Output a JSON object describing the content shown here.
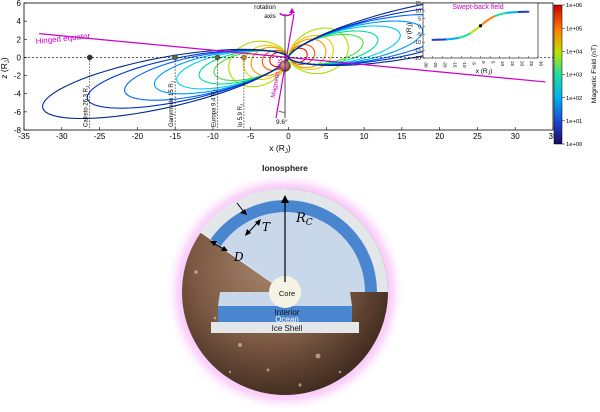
{
  "main_chart": {
    "xlabel": "x (R",
    "xlabel_sub": "J",
    "xlabel_tail": ")",
    "ylabel": "z (R",
    "ylabel_sub": "J",
    "ylabel_tail": ")",
    "xlim": [
      -35,
      35
    ],
    "ylim": [
      -8,
      6
    ],
    "xticks": [
      -35,
      -30,
      -25,
      -20,
      -15,
      -10,
      -5,
      0,
      5,
      10,
      15,
      20,
      25,
      30,
      35
    ],
    "yticks": [
      6,
      4,
      2,
      0,
      -2,
      -4,
      -6,
      -8
    ],
    "annotations": {
      "hinged_equator": "Hinged equator",
      "rotation_axis_1": "rotation",
      "rotation_axis_2": "axis",
      "magnetic_axis": "Magnetic axis",
      "tilt_angle": "9.6°"
    },
    "moons": [
      {
        "label": "Callisto 26.3 R",
        "sub": "J",
        "x": -26.3,
        "color": "#333333"
      },
      {
        "label": "Ganymede 15 R",
        "sub": "J",
        "x": -15,
        "color": "#4d6b4d"
      },
      {
        "label": "Europa 9.4 R",
        "sub": "J",
        "x": -9.4,
        "color": "#556b2f"
      },
      {
        "label": "Io 5.9 R",
        "sub": "J",
        "x": -5.9,
        "color": "#b8862e"
      }
    ]
  },
  "inset_chart": {
    "title": "Swept-back field",
    "xlabel": "x (R",
    "xlabel_sub": "J",
    "xlabel_tail": ")",
    "ylabel": "y (R",
    "ylabel_sub": "J",
    "ylabel_tail": ")",
    "xlim": [
      -30,
      30
    ],
    "ylim": [
      -20,
      15
    ],
    "xticks": [
      -30,
      -25,
      -20,
      -15,
      -10,
      -5,
      0,
      5,
      10,
      15,
      20,
      25,
      30
    ],
    "yticks": [
      15,
      10,
      5,
      0,
      -5,
      -10,
      -15,
      -20
    ]
  },
  "colorbar": {
    "label": "Magnetic Field (nT)",
    "ticks": [
      "1e+06",
      "1e+05",
      "1e+04",
      "1e+03",
      "1e+02",
      "1e+01",
      "1e+00"
    ]
  },
  "diagram": {
    "ionosphere": "Ionosphere",
    "core": "Core",
    "interior_ocean_1": "Interior",
    "interior_ocean_2": "Ocean",
    "ice_shell": "Ice Shell",
    "rc_main": "R",
    "rc_sub": "C",
    "t_label": "T",
    "d_label": "D"
  },
  "colors": {
    "field_lines": [
      "#002a8a",
      "#0033cc",
      "#0066ff",
      "#0099ff",
      "#00ccee",
      "#00dd99",
      "#44dd44",
      "#aadd00",
      "#eecc00",
      "#ff9900",
      "#ff5500",
      "#ee1100"
    ],
    "magnetic_axis": "#cc00cc",
    "ocean": "#4a86d0",
    "ice_shell": "#e4e7ea",
    "interior": "#c8d8ea",
    "glow": "#f4a8f4"
  },
  "chart_data": {
    "type": "line",
    "title": "",
    "xlabel": "x (RJ)",
    "ylabel": "z (RJ)",
    "xlim": [
      -35,
      35
    ],
    "ylim": [
      -8,
      6
    ],
    "grid": false,
    "field_line_equatorial_distances_rj": [
      2.5,
      3.5,
      5,
      6,
      8,
      10,
      12,
      15,
      18,
      22,
      27,
      33
    ],
    "magnetic_tilt_deg": 9.6,
    "moon_orbits_rj": {
      "Io": 5.9,
      "Europa": 9.4,
      "Ganymede": 15,
      "Callisto": 26.3
    },
    "colorbar_range_nT": [
      1,
      1000000
    ]
  }
}
